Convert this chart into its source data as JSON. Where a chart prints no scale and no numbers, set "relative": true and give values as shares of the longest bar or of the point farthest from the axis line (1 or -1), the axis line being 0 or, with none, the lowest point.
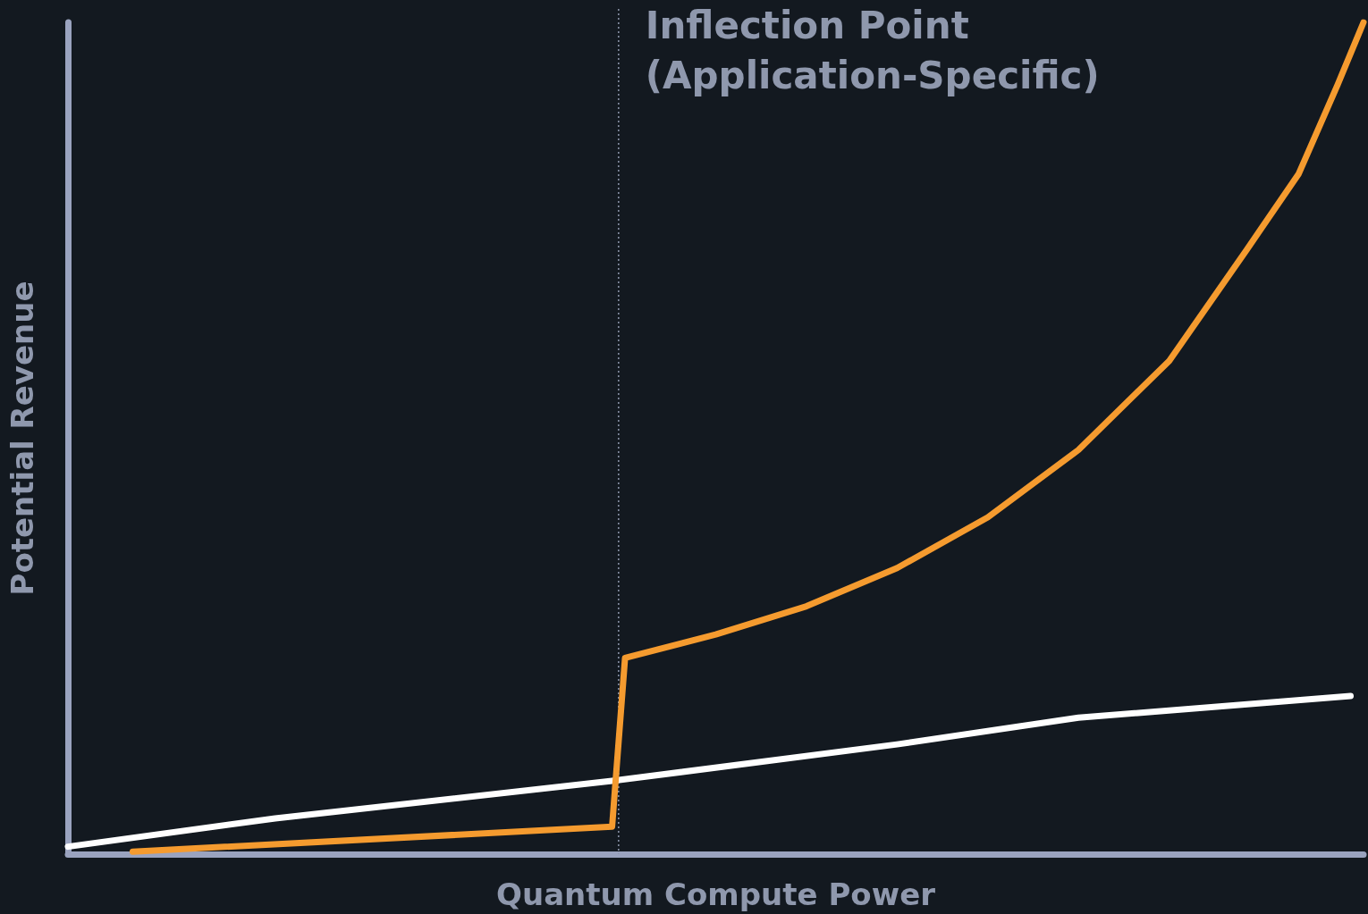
{
  "chart_data": {
    "type": "line",
    "relative": true,
    "xlabel": "Quantum Compute Power",
    "ylabel": "Potential Revenue",
    "grid": false,
    "marker": "none",
    "line_style": "solid",
    "categories": [
      null,
      null,
      null,
      null,
      null,
      null,
      null,
      null,
      null,
      null,
      null,
      null,
      null,
      null,
      null,
      null,
      null,
      null,
      null,
      null,
      null,
      null,
      null,
      null,
      null,
      null,
      null,
      null,
      null,
      null,
      null,
      null,
      null,
      null,
      null,
      null,
      null,
      null,
      null,
      null,
      null,
      null,
      null,
      null,
      null,
      null,
      null,
      null,
      null,
      null,
      null,
      null,
      null,
      null,
      null,
      null,
      null,
      null,
      null,
      null,
      null,
      null,
      null,
      null,
      null,
      null,
      null,
      null,
      null,
      null,
      null,
      null,
      null,
      null,
      null,
      null,
      null,
      null,
      null,
      null,
      null,
      null,
      null,
      null,
      null,
      null,
      null,
      null,
      null,
      null,
      null,
      null,
      null,
      null,
      null,
      null,
      null,
      null,
      null,
      null,
      null
    ],
    "series": [
      {
        "color": "#ffffff",
        "values": [
          0.009,
          null,
          null,
          null,
          null,
          null,
          null,
          null,
          null,
          null,
          null,
          null,
          null,
          null,
          null,
          null,
          0.043,
          null,
          null,
          null,
          null,
          null,
          null,
          null,
          null,
          null,
          null,
          null,
          null,
          null,
          null,
          null,
          null,
          null,
          null,
          null,
          null,
          null,
          null,
          null,
          null,
          null,
          0.088,
          null,
          null,
          null,
          null,
          null,
          null,
          null,
          null,
          null,
          null,
          null,
          null,
          null,
          null,
          null,
          null,
          null,
          null,
          null,
          null,
          null,
          0.132,
          null,
          null,
          null,
          null,
          null,
          null,
          null,
          null,
          null,
          null,
          null,
          null,
          null,
          0.164,
          null,
          null,
          null,
          null,
          null,
          null,
          null,
          null,
          null,
          null,
          null,
          null,
          null,
          null,
          null,
          null,
          null,
          null,
          null,
          null,
          0.19,
          null
        ]
      },
      {
        "color": "#f59b2f",
        "values": [
          null,
          null,
          null,
          null,
          null,
          0.003,
          null,
          null,
          null,
          null,
          null,
          null,
          null,
          null,
          null,
          null,
          null,
          null,
          null,
          null,
          null,
          null,
          null,
          null,
          null,
          null,
          null,
          null,
          null,
          null,
          null,
          null,
          null,
          null,
          null,
          null,
          null,
          null,
          null,
          null,
          null,
          null,
          0.033,
          0.236,
          null,
          null,
          null,
          null,
          null,
          null,
          0.264,
          null,
          null,
          null,
          null,
          null,
          null,
          0.298,
          null,
          null,
          null,
          null,
          null,
          null,
          0.344,
          null,
          null,
          null,
          null,
          null,
          null,
          0.405,
          null,
          null,
          null,
          null,
          null,
          null,
          0.486,
          null,
          null,
          null,
          null,
          null,
          null,
          0.593,
          null,
          null,
          null,
          null,
          null,
          0.727,
          null,
          null,
          null,
          0.818,
          null,
          null,
          0.925,
          null,
          1
        ]
      }
    ],
    "ref_lines": [
      {
        "axis": "x",
        "label": "Inflection Point\n(Application-Specific)",
        "color": "#8f98ad",
        "line_style": "dotted"
      }
    ]
  }
}
